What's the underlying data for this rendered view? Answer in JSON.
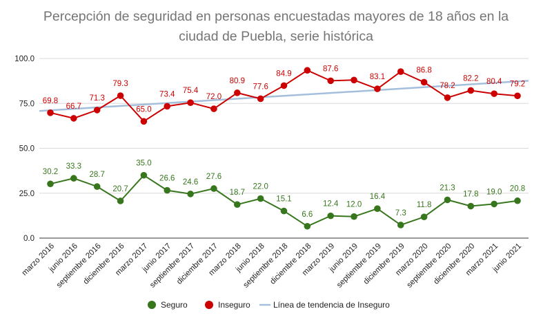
{
  "chart_data": {
    "type": "line",
    "title": "Percepción de seguridad en personas encuestadas mayores de 18 años en la ciudad de Puebla, serie histórica",
    "title_lines": [
      "Percepción de seguridad en personas encuestadas mayores de 18 años en la",
      "ciudad de Puebla, serie histórica"
    ],
    "xlabel": "",
    "ylabel": "",
    "categories": [
      "marzo 2016",
      "junio 2016",
      "septiembre 2016",
      "diciembre 2016",
      "marzo 2017",
      "junio 2017",
      "septiembre 2017",
      "diciembre 2017",
      "marzo 2018",
      "junio 2018",
      "septiembre 2018",
      "diciembre 2018",
      "marzo 2019",
      "junio 2019",
      "septiembre 2019",
      "diciembre 2019",
      "marzo 2020",
      "septiembre 2020",
      "diciembre 2020",
      "marzo 2021",
      "junio 2021"
    ],
    "series": [
      {
        "name": "Seguro",
        "color": "#38761d",
        "values": [
          30.2,
          33.3,
          28.7,
          20.7,
          35.0,
          26.6,
          24.6,
          27.6,
          18.7,
          22.0,
          15.1,
          6.6,
          12.4,
          12.0,
          16.4,
          7.3,
          11.8,
          21.3,
          17.8,
          19.0,
          20.8
        ],
        "labels": [
          "30.2",
          "33.3",
          "28.7",
          "20.7",
          "35.0",
          "26.6",
          "24.6",
          "27.6",
          "18.7",
          "22.0",
          "15.1",
          "6.6",
          "12.4",
          "12.0",
          "16.4",
          "7.3",
          "11.8",
          "21.3",
          "17.8",
          "19.0",
          "20.8"
        ]
      },
      {
        "name": "Inseguro",
        "color": "#cc0000",
        "values": [
          69.8,
          66.7,
          71.3,
          79.3,
          65.0,
          73.4,
          75.4,
          72.0,
          80.9,
          77.6,
          84.9,
          93.4,
          87.6,
          88.0,
          83.1,
          92.7,
          86.8,
          78.2,
          82.2,
          80.4,
          79.2
        ],
        "labels": [
          "69.8",
          "66.7",
          "71.3",
          "79.3",
          "65.0",
          "73.4",
          "75.4",
          "72.0",
          "80.9",
          "77.6",
          "84.9",
          "",
          "87.6",
          "",
          "83.1",
          "",
          "86.8",
          "78.2",
          "82.2",
          "80.4",
          "79.2"
        ]
      }
    ],
    "trendline": {
      "name": "Línea de tendencia de Inseguro",
      "of_series": "Inseguro",
      "color": "#a4bfdc",
      "start_value": 70.8,
      "end_value": 87.6
    },
    "y_ticks": [
      "0.0",
      "25.0",
      "50.0",
      "75.0",
      "100.0"
    ],
    "ylim": [
      0,
      100
    ],
    "grid": true,
    "legend_position": "bottom",
    "colors": {
      "title": "#757575",
      "axis_text": "#222222",
      "grid": "#d9d9d9"
    }
  }
}
